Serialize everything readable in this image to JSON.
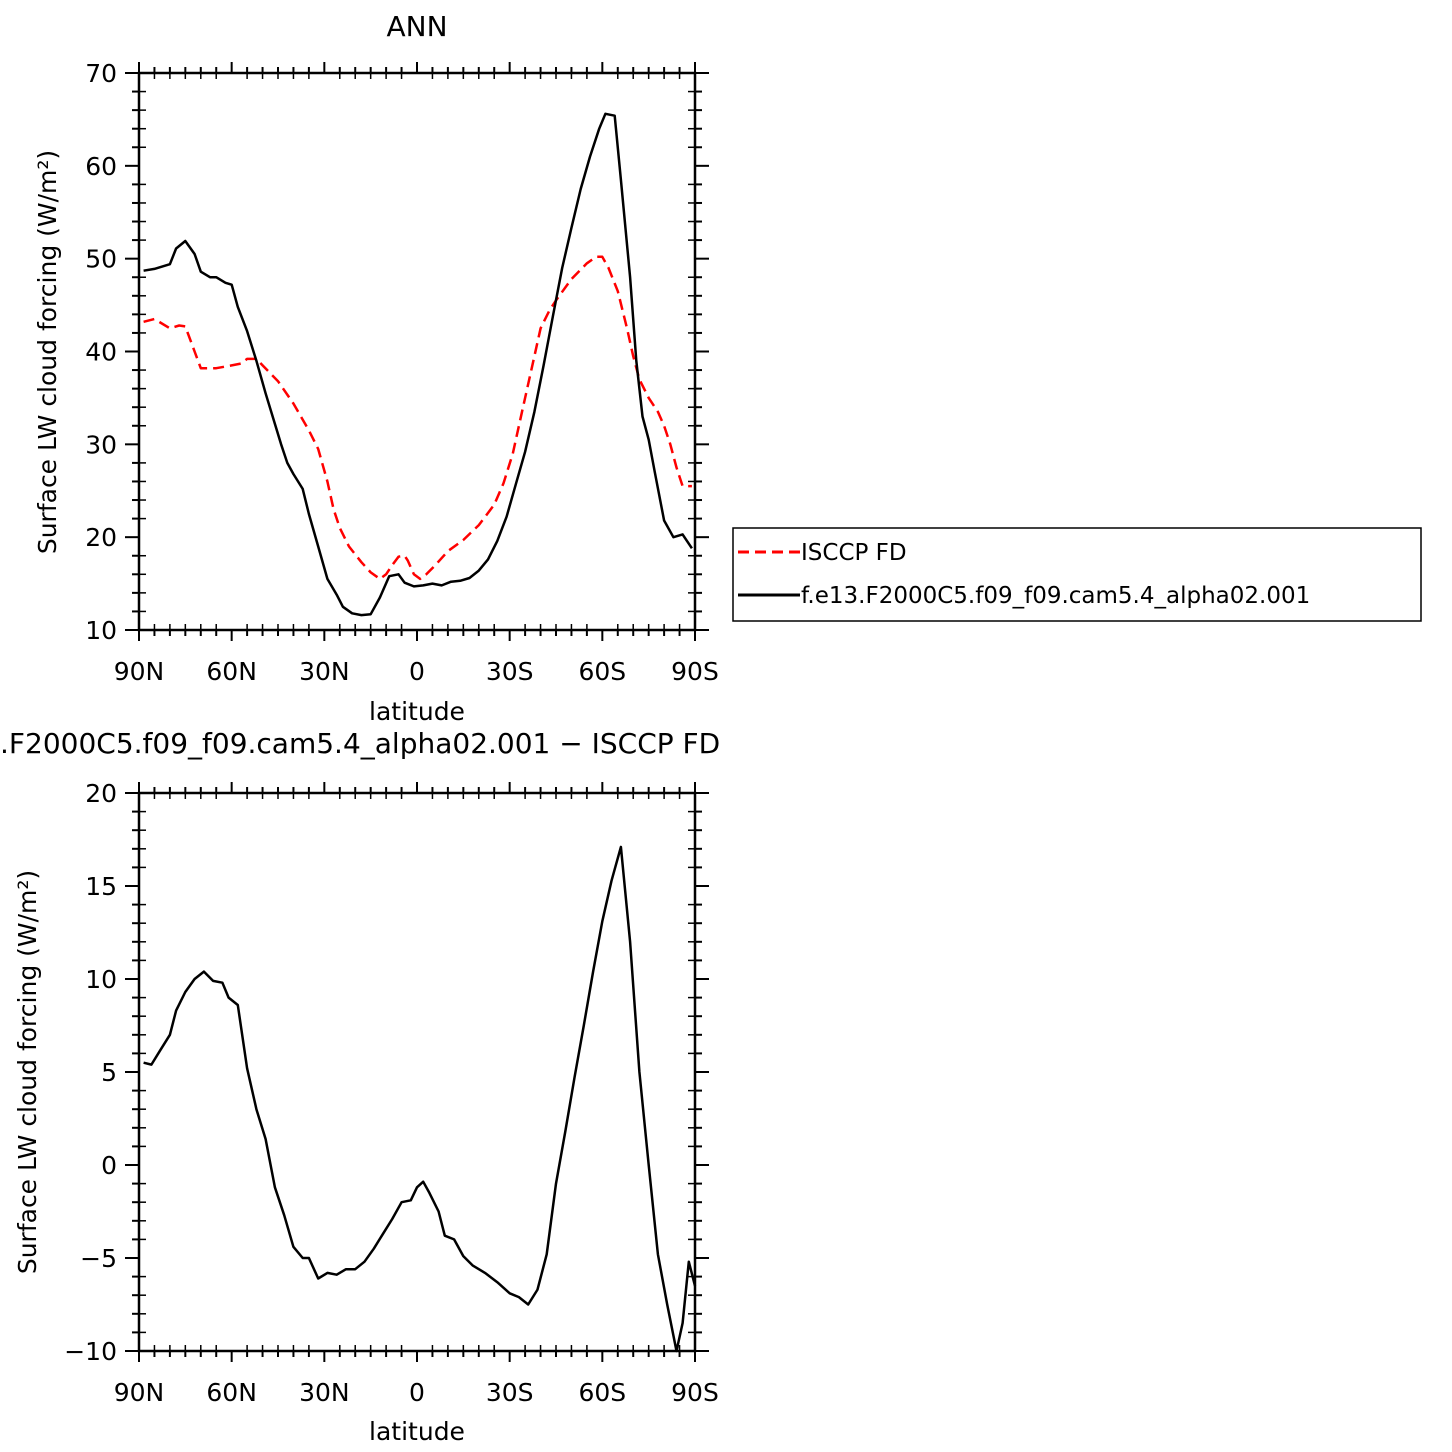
{
  "chart_data": [
    {
      "type": "line",
      "title": "ANN",
      "xlabel": "latitude",
      "ylabel": "Surface LW cloud forcing (W/m²)",
      "xlim": [
        90,
        -90
      ],
      "ylim": [
        10,
        70
      ],
      "x_ticks": [
        {
          "value": 90,
          "label": "90N"
        },
        {
          "value": 60,
          "label": "60N"
        },
        {
          "value": 30,
          "label": "30N"
        },
        {
          "value": 0,
          "label": "0"
        },
        {
          "value": -30,
          "label": "30S"
        },
        {
          "value": -60,
          "label": "60S"
        },
        {
          "value": -90,
          "label": "90S"
        }
      ],
      "y_ticks": [
        10,
        20,
        30,
        40,
        50,
        60,
        70
      ],
      "legend": "right",
      "series": [
        {
          "name": "ISCCP FD",
          "color": "#ff0000",
          "dash": "dashed",
          "points": [
            [
              88.5,
              43.2
            ],
            [
              85,
              43.5
            ],
            [
              80,
              42.5
            ],
            [
              77,
              42.8
            ],
            [
              75,
              42.7
            ],
            [
              72,
              40
            ],
            [
              70,
              38.2
            ],
            [
              65,
              38.2
            ],
            [
              60,
              38.5
            ],
            [
              57,
              38.7
            ],
            [
              55,
              39.2
            ],
            [
              52,
              39.2
            ],
            [
              50,
              38.5
            ],
            [
              45,
              36.8
            ],
            [
              40,
              34.4
            ],
            [
              35,
              31.5
            ],
            [
              32,
              29.5
            ],
            [
              29,
              26
            ],
            [
              27,
              23
            ],
            [
              25,
              21
            ],
            [
              22,
              19
            ],
            [
              18,
              17.3
            ],
            [
              15,
              16.2
            ],
            [
              12,
              15.5
            ],
            [
              10,
              16
            ],
            [
              8,
              17
            ],
            [
              6,
              17.9
            ],
            [
              4,
              18
            ],
            [
              3,
              17.5
            ],
            [
              1,
              16
            ],
            [
              -1,
              15.5
            ],
            [
              -3,
              16
            ],
            [
              -6,
              17
            ],
            [
              -10,
              18.5
            ],
            [
              -15,
              19.7
            ],
            [
              -20,
              21.3
            ],
            [
              -25,
              23.5
            ],
            [
              -28,
              25.8
            ],
            [
              -31,
              29
            ],
            [
              -34,
              33.5
            ],
            [
              -37,
              38
            ],
            [
              -40,
              42.5
            ],
            [
              -43,
              44.5
            ],
            [
              -45,
              45.5
            ],
            [
              -50,
              47.8
            ],
            [
              -55,
              49.5
            ],
            [
              -58,
              50.2
            ],
            [
              -60,
              50.2
            ],
            [
              -62,
              49
            ],
            [
              -65,
              46.5
            ],
            [
              -68,
              42.5
            ],
            [
              -70,
              39.5
            ],
            [
              -72,
              37
            ],
            [
              -75,
              35
            ],
            [
              -78,
              33.5
            ],
            [
              -80,
              32
            ],
            [
              -82,
              30
            ],
            [
              -84,
              27.5
            ],
            [
              -86,
              25.5
            ],
            [
              -89,
              25.5
            ]
          ]
        },
        {
          "name": "f.e13.F2000C5.f09_f09.cam5.4_alpha02.001",
          "color": "#000000",
          "dash": "solid",
          "points": [
            [
              88.5,
              48.7
            ],
            [
              85,
              48.9
            ],
            [
              80,
              49.4
            ],
            [
              78,
              51.1
            ],
            [
              75,
              51.9
            ],
            [
              72,
              50.5
            ],
            [
              70,
              48.6
            ],
            [
              67,
              48
            ],
            [
              65,
              48
            ],
            [
              62,
              47.4
            ],
            [
              60,
              47.2
            ],
            [
              58,
              44.8
            ],
            [
              55,
              42.2
            ],
            [
              52,
              39
            ],
            [
              49,
              35.5
            ],
            [
              46,
              32.2
            ],
            [
              44,
              30
            ],
            [
              42,
              28
            ],
            [
              40,
              26.8
            ],
            [
              37,
              25.2
            ],
            [
              35,
              22.5
            ],
            [
              32,
              19
            ],
            [
              29,
              15.5
            ],
            [
              26,
              13.8
            ],
            [
              24,
              12.5
            ],
            [
              21,
              11.8
            ],
            [
              18,
              11.6
            ],
            [
              15,
              11.7
            ],
            [
              12,
              13.5
            ],
            [
              9,
              15.8
            ],
            [
              6,
              16
            ],
            [
              4,
              15.1
            ],
            [
              1,
              14.7
            ],
            [
              -2,
              14.8
            ],
            [
              -5,
              15
            ],
            [
              -8,
              14.8
            ],
            [
              -11,
              15.2
            ],
            [
              -14,
              15.3
            ],
            [
              -17,
              15.6
            ],
            [
              -20,
              16.4
            ],
            [
              -23,
              17.6
            ],
            [
              -26,
              19.6
            ],
            [
              -29,
              22.2
            ],
            [
              -32,
              25.7
            ],
            [
              -35,
              29.2
            ],
            [
              -38,
              33.5
            ],
            [
              -41,
              38.5
            ],
            [
              -44,
              43.8
            ],
            [
              -47,
              49
            ],
            [
              -50,
              53.3
            ],
            [
              -53,
              57.5
            ],
            [
              -56,
              61
            ],
            [
              -59,
              64
            ],
            [
              -61,
              65.6
            ],
            [
              -64,
              65.4
            ],
            [
              -66,
              58.5
            ],
            [
              -69,
              48
            ],
            [
              -71,
              39
            ],
            [
              -73,
              33
            ],
            [
              -75,
              30.5
            ],
            [
              -77,
              27
            ],
            [
              -80,
              21.8
            ],
            [
              -83,
              20
            ],
            [
              -86,
              20.3
            ],
            [
              -89,
              18.8
            ]
          ]
        }
      ]
    },
    {
      "type": "line",
      "title": ".F2000C5.f09_f09.cam5.4_alpha02.001 − ISCCP FD",
      "xlabel": "latitude",
      "ylabel": "Surface LW cloud forcing (W/m²)",
      "xlim": [
        90,
        -90
      ],
      "ylim": [
        -10,
        20
      ],
      "x_ticks": [
        {
          "value": 90,
          "label": "90N"
        },
        {
          "value": 60,
          "label": "60N"
        },
        {
          "value": 30,
          "label": "30N"
        },
        {
          "value": 0,
          "label": "0"
        },
        {
          "value": -30,
          "label": "30S"
        },
        {
          "value": -60,
          "label": "60S"
        },
        {
          "value": -90,
          "label": "90S"
        }
      ],
      "y_ticks": [
        -10,
        -5,
        0,
        5,
        10,
        15,
        20
      ],
      "series": [
        {
          "color": "#000000",
          "dash": "solid",
          "points": [
            [
              88.5,
              5.5
            ],
            [
              86,
              5.4
            ],
            [
              83,
              6.2
            ],
            [
              80,
              7
            ],
            [
              78,
              8.3
            ],
            [
              75,
              9.3
            ],
            [
              72,
              10
            ],
            [
              69,
              10.4
            ],
            [
              66,
              9.9
            ],
            [
              63,
              9.8
            ],
            [
              61,
              9
            ],
            [
              58,
              8.6
            ],
            [
              55,
              5.2
            ],
            [
              52,
              3
            ],
            [
              49,
              1.4
            ],
            [
              46,
              -1.2
            ],
            [
              43,
              -2.7
            ],
            [
              40,
              -4.4
            ],
            [
              37,
              -5
            ],
            [
              35,
              -5
            ],
            [
              32,
              -6.1
            ],
            [
              29,
              -5.8
            ],
            [
              26,
              -5.9
            ],
            [
              23,
              -5.6
            ],
            [
              20,
              -5.6
            ],
            [
              17,
              -5.2
            ],
            [
              14,
              -4.5
            ],
            [
              11,
              -3.7
            ],
            [
              8,
              -2.9
            ],
            [
              5,
              -2
            ],
            [
              2,
              -1.9
            ],
            [
              0,
              -1.2
            ],
            [
              -2,
              -0.9
            ],
            [
              -4,
              -1.5
            ],
            [
              -7,
              -2.5
            ],
            [
              -9,
              -3.8
            ],
            [
              -12,
              -4
            ],
            [
              -15,
              -4.9
            ],
            [
              -18,
              -5.4
            ],
            [
              -22,
              -5.8
            ],
            [
              -26,
              -6.3
            ],
            [
              -30,
              -6.9
            ],
            [
              -33,
              -7.1
            ],
            [
              -36,
              -7.5
            ],
            [
              -39,
              -6.7
            ],
            [
              -42,
              -4.8
            ],
            [
              -45,
              -1
            ],
            [
              -48,
              1.8
            ],
            [
              -51,
              4.7
            ],
            [
              -54,
              7.5
            ],
            [
              -57,
              10.4
            ],
            [
              -60,
              13.1
            ],
            [
              -63,
              15.3
            ],
            [
              -66,
              17.1
            ],
            [
              -69,
              12
            ],
            [
              -72,
              5
            ],
            [
              -75,
              0
            ],
            [
              -78,
              -4.8
            ],
            [
              -81,
              -7.5
            ],
            [
              -84,
              -10
            ],
            [
              -86,
              -8.5
            ],
            [
              -88,
              -5.2
            ],
            [
              -90,
              -6.5
            ]
          ]
        }
      ]
    }
  ]
}
